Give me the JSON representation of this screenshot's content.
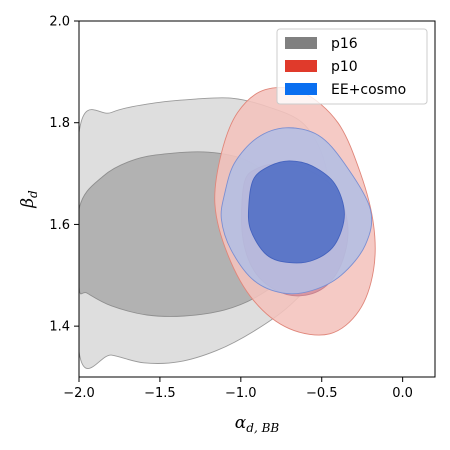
{
  "chart_data": {
    "type": "contour",
    "xlabel": "α",
    "xlabel_sub": "d, BB",
    "ylabel": "β",
    "ylabel_sub": "d",
    "xlim": [
      -2.0,
      0.2
    ],
    "ylim": [
      1.3,
      2.0
    ],
    "xticks": [
      -2.0,
      -1.5,
      -1.0,
      -0.5,
      0.0
    ],
    "xtick_labels": [
      "−2.0",
      "−1.5",
      "−1.0",
      "−0.5",
      "0.0"
    ],
    "yticks": [
      1.4,
      1.6,
      1.8,
      2.0
    ],
    "ytick_labels": [
      "1.4",
      "1.6",
      "1.8",
      "2.0"
    ],
    "grid": false,
    "legend_position": "top-right",
    "series": [
      {
        "name": "p16",
        "color": "#808080",
        "contours": [
          {
            "level": "95%",
            "fill": "#d9d9d9",
            "stroke": "#9a9a9a",
            "points": [
              [
                -2.0,
                1.78
              ],
              [
                -1.8,
                1.82
              ],
              [
                -1.55,
                1.838
              ],
              [
                -1.3,
                1.846
              ],
              [
                -1.05,
                1.848
              ],
              [
                -0.82,
                1.83
              ],
              [
                -0.62,
                1.8
              ],
              [
                -0.5,
                1.74
              ],
              [
                -0.45,
                1.66
              ],
              [
                -0.46,
                1.58
              ],
              [
                -0.54,
                1.5
              ],
              [
                -0.7,
                1.44
              ],
              [
                -0.92,
                1.39
              ],
              [
                -1.15,
                1.352
              ],
              [
                -1.38,
                1.33
              ],
              [
                -1.6,
                1.328
              ],
              [
                -1.8,
                1.343
              ],
              [
                -2.0,
                1.35
              ]
            ]
          },
          {
            "level": "68%",
            "fill": "#acacac",
            "stroke": "#8f8f8f",
            "points": [
              [
                -2.0,
                1.63
              ],
              [
                -1.85,
                1.695
              ],
              [
                -1.65,
                1.728
              ],
              [
                -1.42,
                1.74
              ],
              [
                -1.2,
                1.742
              ],
              [
                -0.98,
                1.728
              ],
              [
                -0.8,
                1.69
              ],
              [
                -0.67,
                1.64
              ],
              [
                -0.65,
                1.56
              ],
              [
                -0.73,
                1.5
              ],
              [
                -0.9,
                1.458
              ],
              [
                -1.1,
                1.432
              ],
              [
                -1.35,
                1.42
              ],
              [
                -1.58,
                1.422
              ],
              [
                -1.8,
                1.44
              ],
              [
                -1.95,
                1.465
              ],
              [
                -2.0,
                1.478
              ]
            ]
          }
        ]
      },
      {
        "name": "p10",
        "color": "#e03a2b",
        "contours": [
          {
            "level": "95%",
            "fill": "#f4c3bd",
            "stroke": "#e0867a",
            "points": [
              [
                -1.12,
                1.74
              ],
              [
                -1.02,
                1.82
              ],
              [
                -0.85,
                1.865
              ],
              [
                -0.62,
                1.86
              ],
              [
                -0.4,
                1.8
              ],
              [
                -0.26,
                1.7
              ],
              [
                -0.18,
                1.6
              ],
              [
                -0.18,
                1.51
              ],
              [
                -0.27,
                1.43
              ],
              [
                -0.45,
                1.385
              ],
              [
                -0.7,
                1.395
              ],
              [
                -0.92,
                1.45
              ],
              [
                -1.08,
                1.54
              ],
              [
                -1.16,
                1.64
              ]
            ]
          },
          {
            "level": "68%",
            "fill": "#d58e9c",
            "stroke": "#c8838f",
            "points": [
              [
                -0.98,
                1.68
              ],
              [
                -0.9,
                1.71
              ],
              [
                -0.75,
                1.72
              ],
              [
                -0.6,
                1.71
              ],
              [
                -0.42,
                1.67
              ],
              [
                -0.34,
                1.6
              ],
              [
                -0.37,
                1.53
              ],
              [
                -0.47,
                1.48
              ],
              [
                -0.62,
                1.46
              ],
              [
                -0.78,
                1.47
              ],
              [
                -0.92,
                1.51
              ],
              [
                -0.99,
                1.58
              ]
            ]
          }
        ]
      },
      {
        "name": "EE+cosmo",
        "color": "#0a6ff0",
        "contours": [
          {
            "level": "95%",
            "fill": "#b3bee4",
            "stroke": "#7b8fd2",
            "points": [
              [
                -1.1,
                1.66
              ],
              [
                -1.04,
                1.72
              ],
              [
                -0.9,
                1.77
              ],
              [
                -0.72,
                1.79
              ],
              [
                -0.52,
                1.775
              ],
              [
                -0.36,
                1.72
              ],
              [
                -0.2,
                1.63
              ],
              [
                -0.23,
                1.56
              ],
              [
                -0.38,
                1.5
              ],
              [
                -0.56,
                1.47
              ],
              [
                -0.74,
                1.465
              ],
              [
                -0.92,
                1.49
              ],
              [
                -1.06,
                1.55
              ],
              [
                -1.12,
                1.61
              ]
            ]
          },
          {
            "level": "68%",
            "fill": "#4e6dc5",
            "stroke": "#4462bd",
            "points": [
              [
                -0.95,
                1.64
              ],
              [
                -0.92,
                1.69
              ],
              [
                -0.82,
                1.715
              ],
              [
                -0.7,
                1.725
              ],
              [
                -0.56,
                1.715
              ],
              [
                -0.42,
                1.68
              ],
              [
                -0.36,
                1.62
              ],
              [
                -0.42,
                1.56
              ],
              [
                -0.55,
                1.53
              ],
              [
                -0.7,
                1.525
              ],
              [
                -0.84,
                1.54
              ],
              [
                -0.94,
                1.59
              ]
            ]
          }
        ]
      }
    ]
  }
}
